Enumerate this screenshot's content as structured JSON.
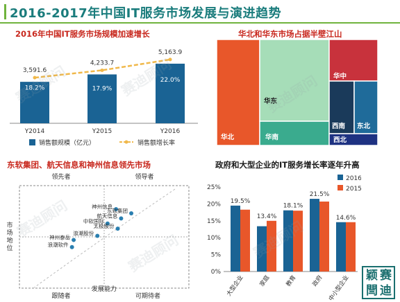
{
  "main_title": "2016-2017年中国IT服务市场发展与演进趋势",
  "watermark": "赛迪顾问",
  "logo_chars": [
    "颖",
    "赛",
    "閆",
    "迪"
  ],
  "panels": {
    "p1_title": "2016年中国IT服务市场规模加速增长",
    "p2_title": "华北和华东市场占据半壁江山",
    "p3_title": "东软集团、航天信息和神州信息领先市场",
    "p4_title": "政府和大型企业的IT服务增长率逐年升高"
  },
  "chart_data": [
    {
      "type": "bar",
      "title": "2016年中国IT服务市场规模加速增长",
      "categories": [
        "Y2014",
        "Y2015",
        "Y2016"
      ],
      "series": [
        {
          "name": "销售额规模（亿元）",
          "values": [
            3591.6,
            4233.7,
            5163.9
          ],
          "labels": [
            "3,591.6",
            "4,233.7",
            "5,163.9"
          ],
          "color": "#1a6394"
        },
        {
          "name": "销售额增长率",
          "values": [
            18.2,
            17.9,
            22.0
          ],
          "labels": [
            "18.2%",
            "17.9%",
            "22.0%"
          ],
          "color": "#f0b84a",
          "kind": "line"
        }
      ],
      "ylim": [
        0,
        6000
      ],
      "legend": "bottom"
    },
    {
      "type": "treemap",
      "title": "华北和华东市场占据半壁江山",
      "regions": [
        {
          "name": "华北",
          "color": "#e8572a"
        },
        {
          "name": "华东",
          "color": "#a6ddb8"
        },
        {
          "name": "华南",
          "color": "#3aab8e"
        },
        {
          "name": "华中",
          "color": "#c8323c"
        },
        {
          "name": "西南",
          "color": "#1a3a5a"
        },
        {
          "name": "东北",
          "color": "#1f6b9a"
        },
        {
          "name": "西北",
          "color": "#1e3282"
        }
      ]
    },
    {
      "type": "scatter",
      "title": "东软集团、航天信息和神州信息领先市场",
      "xlabel": "发展能力",
      "ylabel": "市场地位",
      "quadrants": {
        "top_left": "领先者",
        "top_right": "领导者",
        "bottom_left": "跟随者",
        "bottom_right": "可期待者"
      },
      "points": [
        {
          "name": "神州信息",
          "x": 0.57,
          "y": 0.77
        },
        {
          "name": "东软集团",
          "x": 0.66,
          "y": 0.73
        },
        {
          "name": "航天信息",
          "x": 0.6,
          "y": 0.68
        },
        {
          "name": "中软国际",
          "x": 0.52,
          "y": 0.63
        },
        {
          "name": "太极股份",
          "x": 0.58,
          "y": 0.58
        },
        {
          "name": "浪潮股份",
          "x": 0.46,
          "y": 0.51
        },
        {
          "name": "神州泰岳",
          "x": 0.32,
          "y": 0.47
        },
        {
          "name": "浪潮软件",
          "x": 0.31,
          "y": 0.4
        }
      ],
      "xlim": [
        0,
        1
      ],
      "ylim": [
        0,
        1
      ]
    },
    {
      "type": "bar",
      "title": "政府和大型企业的IT服务增长率逐年升高",
      "categories": [
        "大型企业",
        "家庭",
        "教育",
        "政府",
        "中小型企业"
      ],
      "series": [
        {
          "name": "2016",
          "values": [
            19.5,
            13.4,
            18.1,
            21.5,
            14.6
          ],
          "color": "#1a6394"
        },
        {
          "name": "2015",
          "values": [
            18.3,
            15.0,
            18.0,
            20.7,
            14.6
          ],
          "color": "#e8572a"
        }
      ],
      "data_labels": [
        "19.5%",
        "13.4%",
        "18.1%",
        "21.5%",
        "14.6%"
      ],
      "yticks": [
        "0%",
        "5%",
        "10%",
        "15%",
        "20%",
        "25%"
      ],
      "ylim": [
        0,
        25
      ],
      "legend": "top-right"
    }
  ]
}
